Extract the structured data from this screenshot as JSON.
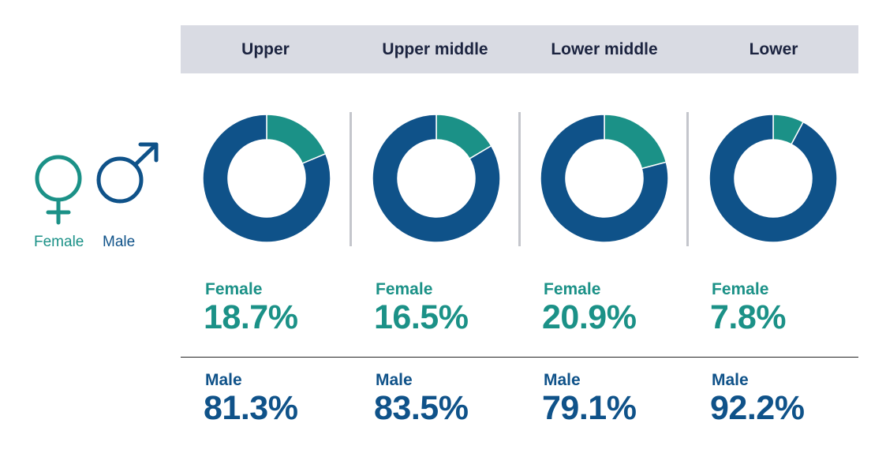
{
  "chart_data": {
    "type": "donut",
    "categories": [
      "Upper",
      "Upper middle",
      "Lower middle",
      "Lower"
    ],
    "series": [
      {
        "name": "Female",
        "values": [
          18.7,
          16.5,
          20.9,
          7.8
        ],
        "color": "#1b9187"
      },
      {
        "name": "Male",
        "values": [
          81.3,
          83.5,
          79.1,
          92.2
        ],
        "color": "#0f5289"
      }
    ],
    "value_labels": {
      "female": [
        "18.7%",
        "16.5%",
        "20.9%",
        "7.8%"
      ],
      "male": [
        "81.3%",
        "83.5%",
        "79.1%",
        "92.2%"
      ]
    },
    "legend": {
      "female": "Female",
      "male": "Male",
      "female_icon": "female-symbol-icon",
      "male_icon": "male-symbol-icon"
    }
  }
}
